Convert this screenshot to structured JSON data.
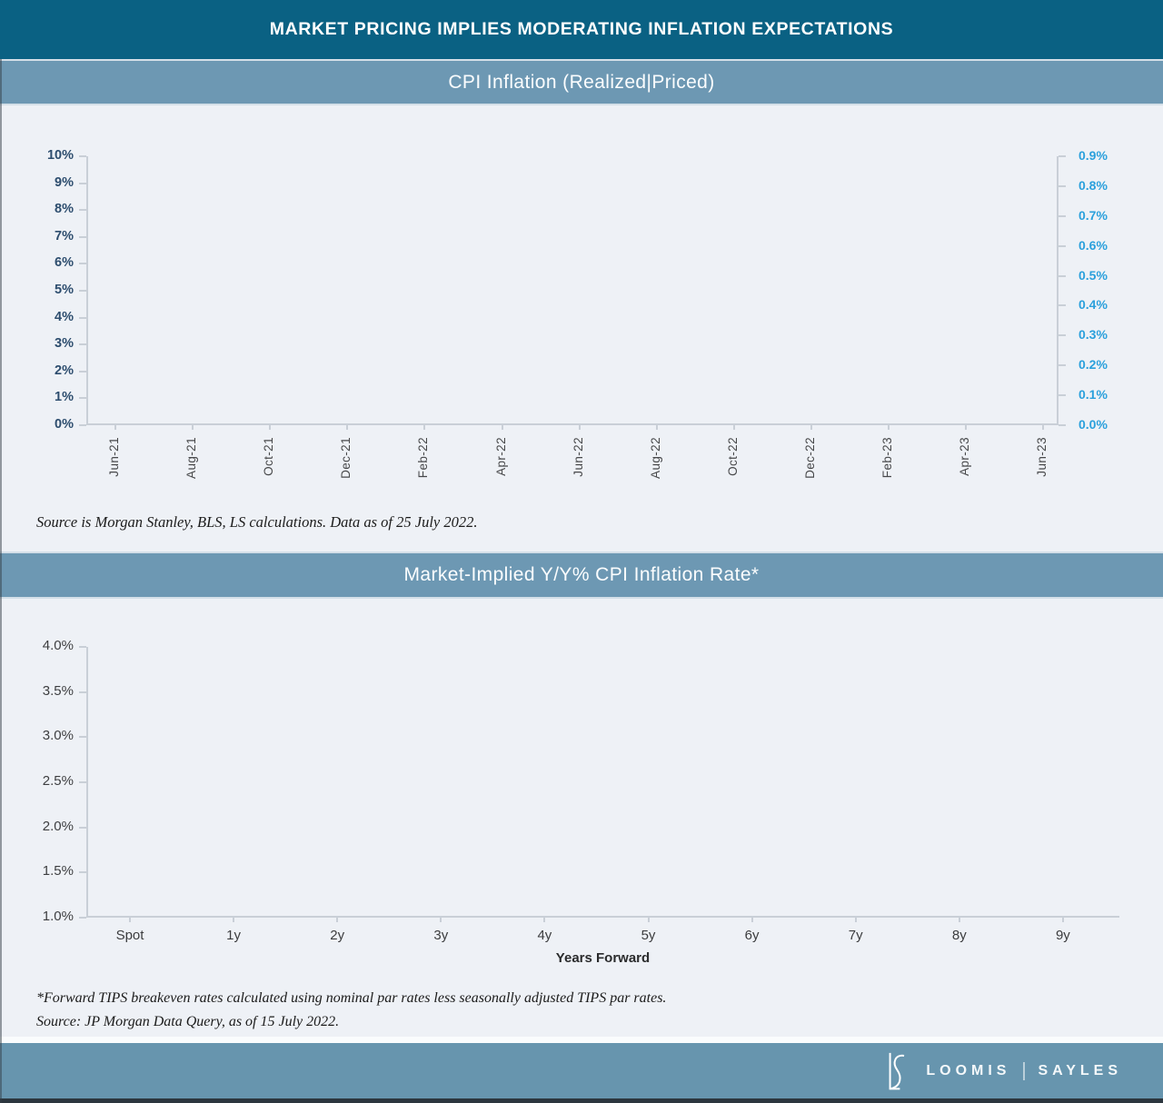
{
  "header": {
    "title": "MARKET PRICING IMPLIES MODERATING INFLATION EXPECTATIONS"
  },
  "colors": {
    "header_teal": "#0a6183",
    "band_blue": "#6d98b3",
    "footer_blue": "#6795ae",
    "background": "#eef1f6",
    "axis_line": "#c9cfd7",
    "left_axis_label_blue": "#2d4d6e",
    "right_axis_label_blue": "#2ba0dc"
  },
  "chart_data": [
    {
      "type": "line",
      "title": "CPI Inflation (Realized|Priced)",
      "x_tick_labels": [
        "Jun-21",
        "Aug-21",
        "Oct-21",
        "Dec-21",
        "Feb-22",
        "Apr-22",
        "Jun-22",
        "Aug-22",
        "Oct-22",
        "Dec-22",
        "Feb-23",
        "Apr-23",
        "Jun-23"
      ],
      "left_axis": {
        "ticks_top_to_bottom": [
          "10%",
          "9%",
          "8%",
          "7%",
          "6%",
          "5%",
          "4%",
          "3%",
          "2%",
          "1%",
          "0%"
        ],
        "range": [
          0,
          10
        ]
      },
      "right_axis": {
        "ticks_top_to_bottom": [
          "0.9%",
          "0.8%",
          "0.7%",
          "0.6%",
          "0.5%",
          "0.4%",
          "0.3%",
          "0.2%",
          "0.1%",
          "0.0%"
        ],
        "range": [
          0.0,
          0.9
        ]
      },
      "series": [],
      "grid": false,
      "legend": "none",
      "source": "Source is Morgan Stanley, BLS, LS calculations. Data as of 25 July 2022."
    },
    {
      "type": "line",
      "title": "Market-Implied Y/Y% CPI Inflation Rate*",
      "xlabel": "Years Forward",
      "x_tick_labels": [
        "Spot",
        "1y",
        "2y",
        "3y",
        "4y",
        "5y",
        "6y",
        "7y",
        "8y",
        "9y"
      ],
      "y_axis": {
        "ticks_top_to_bottom": [
          "4.0%",
          "3.5%",
          "3.0%",
          "2.5%",
          "2.0%",
          "1.5%",
          "1.0%"
        ],
        "range": [
          1.0,
          4.0
        ]
      },
      "series": [],
      "grid": false,
      "legend": "none",
      "footnote_lines": [
        "*Forward TIPS breakeven rates calculated using nominal par rates less seasonally adjusted TIPS par rates.",
        "Source: JP Morgan Data Query, as of 15 July 2022."
      ]
    }
  ],
  "footer": {
    "brand_left": "LOOMIS",
    "brand_right": "SAYLES"
  }
}
